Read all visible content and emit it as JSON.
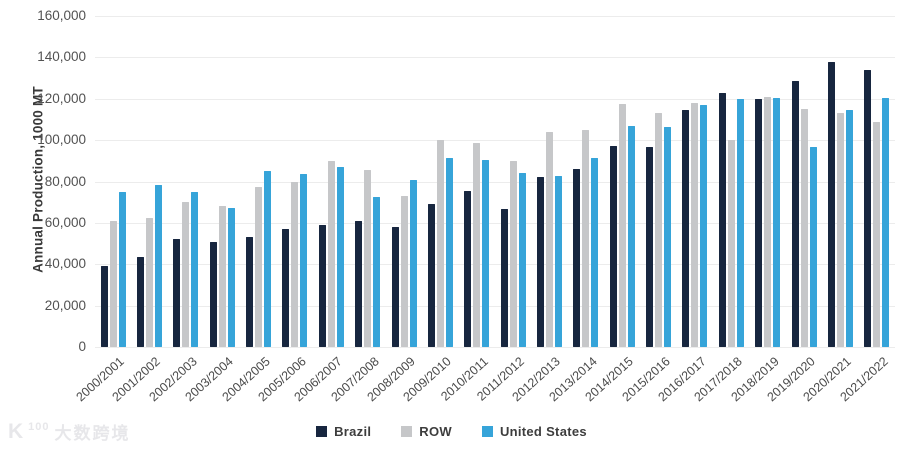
{
  "chart_data": {
    "type": "bar",
    "title": "",
    "y_axis_title": "Annual Production, 1000 MT",
    "ylim": [
      0,
      160000
    ],
    "y_ticks": [
      0,
      20000,
      40000,
      60000,
      80000,
      100000,
      120000,
      140000,
      160000
    ],
    "y_tick_labels": [
      "0",
      "20,000",
      "40,000",
      "60,000",
      "80,000",
      "100,000",
      "120,000",
      "140,000",
      "160,000"
    ],
    "grid": "horizontal",
    "legend_position": "bottom",
    "categories": [
      "2000/2001",
      "2001/2002",
      "2002/2003",
      "2003/2004",
      "2004/2005",
      "2005/2006",
      "2006/2007",
      "2007/2008",
      "2008/2009",
      "2009/2010",
      "2010/2011",
      "2011/2012",
      "2012/2013",
      "2013/2014",
      "2014/2015",
      "2015/2016",
      "2016/2017",
      "2017/2018",
      "2018/2019",
      "2019/2020",
      "2020/2021",
      "2021/2022"
    ],
    "series": [
      {
        "name": "Brazil",
        "color": "#17263f",
        "values": [
          39000,
          43500,
          52000,
          51000,
          53000,
          57000,
          59000,
          61000,
          57800,
          69000,
          75300,
          66500,
          82000,
          86000,
          97200,
          96500,
          114600,
          123000,
          119700,
          128500,
          138000,
          134000
        ]
      },
      {
        "name": "ROW",
        "color": "#c6c7c9",
        "values": [
          61000,
          62500,
          70000,
          68000,
          77500,
          80000,
          90000,
          85500,
          73000,
          100000,
          98500,
          90000,
          104000,
          105000,
          117500,
          113000,
          118000,
          100000,
          121000,
          115000,
          113000,
          109000
        ]
      },
      {
        "name": "United States",
        "color": "#36a4d9",
        "values": [
          75000,
          78500,
          75000,
          67000,
          85000,
          83500,
          87000,
          72500,
          80500,
          91500,
          90500,
          84000,
          82800,
          91400,
          106900,
          106500,
          116900,
          120000,
          120500,
          96500,
          114700,
          120500
        ]
      }
    ]
  },
  "watermark": {
    "logo_k": "K",
    "logo_100": "100",
    "text": "大数跨境"
  }
}
